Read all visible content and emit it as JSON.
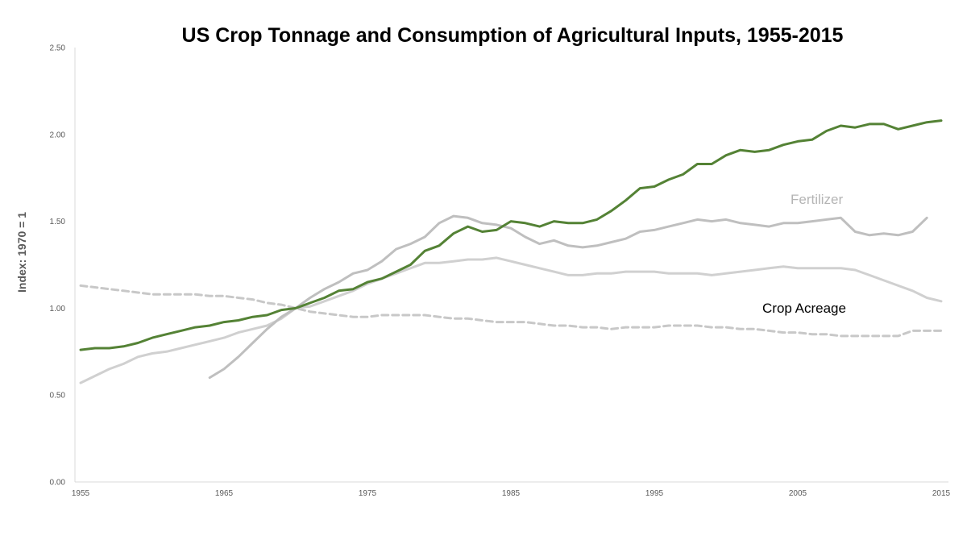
{
  "chart_data": {
    "type": "line",
    "title": "US Crop Tonnage and Consumption of Agricultural Inputs, 1955-2015",
    "xlabel": "",
    "ylabel": "Index: 1970 = 1",
    "xlim": [
      1955,
      2015
    ],
    "ylim": [
      0,
      2.5
    ],
    "x_ticks": [
      "1955",
      "1965",
      "1975",
      "1985",
      "1995",
      "2005",
      "2015"
    ],
    "y_ticks": [
      "0.00",
      "0.50",
      "1.00",
      "1.50",
      "2.00",
      "2.50"
    ],
    "grid": false,
    "legend": "none",
    "annotations": {
      "fertilizer": "Fertilizer",
      "crop_acreage": "Crop Acreage"
    },
    "colors": {
      "tonnage": "#548235",
      "gray": "#bfbfbf",
      "light_gray": "#d0d0d0",
      "dashed": "#c8c8c8"
    },
    "series": [
      {
        "color": "#548235",
        "dash": "solid",
        "width": 3,
        "x": [
          1955,
          1956,
          1957,
          1958,
          1959,
          1960,
          1961,
          1962,
          1963,
          1964,
          1965,
          1966,
          1967,
          1968,
          1969,
          1970,
          1971,
          1972,
          1973,
          1974,
          1975,
          1976,
          1977,
          1978,
          1979,
          1980,
          1981,
          1982,
          1983,
          1984,
          1985,
          1986,
          1987,
          1988,
          1989,
          1990,
          1991,
          1992,
          1993,
          1994,
          1995,
          1996,
          1997,
          1998,
          1999,
          2000,
          2001,
          2002,
          2003,
          2004,
          2005,
          2006,
          2007,
          2008,
          2009,
          2010,
          2011,
          2012,
          2013,
          2014,
          2015
        ],
        "y": [
          0.76,
          0.77,
          0.77,
          0.78,
          0.8,
          0.83,
          0.85,
          0.87,
          0.89,
          0.9,
          0.92,
          0.93,
          0.95,
          0.96,
          0.99,
          1.0,
          1.03,
          1.06,
          1.1,
          1.11,
          1.15,
          1.17,
          1.21,
          1.25,
          1.33,
          1.36,
          1.43,
          1.47,
          1.44,
          1.45,
          1.5,
          1.49,
          1.47,
          1.5,
          1.49,
          1.49,
          1.51,
          1.56,
          1.62,
          1.69,
          1.7,
          1.74,
          1.77,
          1.83,
          1.83,
          1.88,
          1.91,
          1.9,
          1.91,
          1.94,
          1.96,
          1.97,
          2.02,
          2.05,
          2.04,
          2.06,
          2.06,
          2.03,
          2.05,
          2.07,
          2.08
        ]
      },
      {
        "name": "Fertilizer",
        "color": "#bfbfbf",
        "dash": "solid",
        "width": 3,
        "x": [
          1964,
          1965,
          1966,
          1967,
          1968,
          1969,
          1970,
          1971,
          1972,
          1973,
          1974,
          1975,
          1976,
          1977,
          1978,
          1979,
          1980,
          1981,
          1982,
          1983,
          1984,
          1985,
          1986,
          1987,
          1988,
          1989,
          1990,
          1991,
          1992,
          1993,
          1994,
          1995,
          1996,
          1997,
          1998,
          1999,
          2000,
          2001,
          2002,
          2003,
          2004,
          2005,
          2006,
          2007,
          2008,
          2009,
          2010,
          2011,
          2012,
          2013,
          2014
        ],
        "y": [
          0.6,
          0.65,
          0.72,
          0.8,
          0.88,
          0.95,
          1.0,
          1.06,
          1.11,
          1.15,
          1.2,
          1.22,
          1.27,
          1.34,
          1.37,
          1.41,
          1.49,
          1.53,
          1.52,
          1.49,
          1.48,
          1.46,
          1.41,
          1.37,
          1.39,
          1.36,
          1.35,
          1.36,
          1.38,
          1.4,
          1.44,
          1.45,
          1.47,
          1.49,
          1.51,
          1.5,
          1.51,
          1.49,
          1.48,
          1.47,
          1.49,
          1.49,
          1.5,
          1.51,
          1.52,
          1.44,
          1.42,
          1.43,
          1.42,
          1.44,
          1.52
        ]
      },
      {
        "color": "#d0d0d0",
        "dash": "solid",
        "width": 3,
        "x": [
          1955,
          1956,
          1957,
          1958,
          1959,
          1960,
          1961,
          1962,
          1963,
          1964,
          1965,
          1966,
          1967,
          1968,
          1969,
          1970,
          1971,
          1972,
          1973,
          1974,
          1975,
          1976,
          1977,
          1978,
          1979,
          1980,
          1981,
          1982,
          1983,
          1984,
          1985,
          1986,
          1987,
          1988,
          1989,
          1990,
          1991,
          1992,
          1993,
          1994,
          1995,
          1996,
          1997,
          1998,
          1999,
          2000,
          2001,
          2002,
          2003,
          2004,
          2005,
          2006,
          2007,
          2008,
          2009,
          2010,
          2011,
          2012,
          2013,
          2014,
          2015
        ],
        "y": [
          0.57,
          0.61,
          0.65,
          0.68,
          0.72,
          0.74,
          0.75,
          0.77,
          0.79,
          0.81,
          0.83,
          0.86,
          0.88,
          0.9,
          0.94,
          1.0,
          1.01,
          1.04,
          1.07,
          1.1,
          1.14,
          1.17,
          1.2,
          1.23,
          1.26,
          1.26,
          1.27,
          1.28,
          1.28,
          1.29,
          1.27,
          1.25,
          1.23,
          1.21,
          1.19,
          1.19,
          1.2,
          1.2,
          1.21,
          1.21,
          1.21,
          1.2,
          1.2,
          1.2,
          1.19,
          1.2,
          1.21,
          1.22,
          1.23,
          1.24,
          1.23,
          1.23,
          1.23,
          1.23,
          1.22,
          1.19,
          1.16,
          1.13,
          1.1,
          1.06,
          1.04
        ]
      },
      {
        "name": "Crop Acreage",
        "color": "#c8c8c8",
        "dash": "dashed",
        "width": 3,
        "x": [
          1955,
          1956,
          1957,
          1958,
          1959,
          1960,
          1961,
          1962,
          1963,
          1964,
          1965,
          1966,
          1967,
          1968,
          1969,
          1970,
          1971,
          1972,
          1973,
          1974,
          1975,
          1976,
          1977,
          1978,
          1979,
          1980,
          1981,
          1982,
          1983,
          1984,
          1985,
          1986,
          1987,
          1988,
          1989,
          1990,
          1991,
          1992,
          1993,
          1994,
          1995,
          1996,
          1997,
          1998,
          1999,
          2000,
          2001,
          2002,
          2003,
          2004,
          2005,
          2006,
          2007,
          2008,
          2009,
          2010,
          2011,
          2012,
          2013,
          2014,
          2015
        ],
        "y": [
          1.13,
          1.12,
          1.11,
          1.1,
          1.09,
          1.08,
          1.08,
          1.08,
          1.08,
          1.07,
          1.07,
          1.06,
          1.05,
          1.03,
          1.02,
          1.0,
          0.98,
          0.97,
          0.96,
          0.95,
          0.95,
          0.96,
          0.96,
          0.96,
          0.96,
          0.95,
          0.94,
          0.94,
          0.93,
          0.92,
          0.92,
          0.92,
          0.91,
          0.9,
          0.9,
          0.89,
          0.89,
          0.88,
          0.89,
          0.89,
          0.89,
          0.9,
          0.9,
          0.9,
          0.89,
          0.89,
          0.88,
          0.88,
          0.87,
          0.86,
          0.86,
          0.85,
          0.85,
          0.84,
          0.84,
          0.84,
          0.84,
          0.84,
          0.87,
          0.87,
          0.87
        ]
      }
    ]
  }
}
